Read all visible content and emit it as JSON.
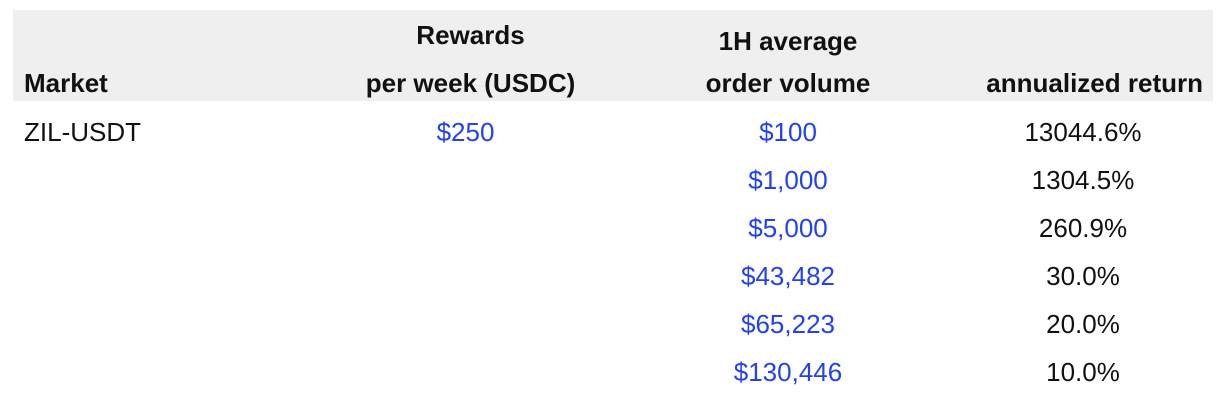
{
  "table": {
    "headers": {
      "market": "Market",
      "rewards_line1": "Rewards",
      "rewards_line2": "per week (USDC)",
      "volume_line1": "1H average",
      "volume_line2": "order volume",
      "return_label": "annualized return"
    },
    "market_name": "ZIL-USDT",
    "rewards_value": "$250",
    "rows": [
      {
        "volume": "$100",
        "return": "13044.6%"
      },
      {
        "volume": "$1,000",
        "return": "1304.5%"
      },
      {
        "volume": "$5,000",
        "return": "260.9%"
      },
      {
        "volume": "$43,482",
        "return": "30.0%"
      },
      {
        "volume": "$65,223",
        "return": "20.0%"
      },
      {
        "volume": "$130,446",
        "return": "10.0%"
      }
    ]
  },
  "colors": {
    "header_background": "#efefef",
    "value_blue": "#2141f3",
    "text": "#111111"
  }
}
